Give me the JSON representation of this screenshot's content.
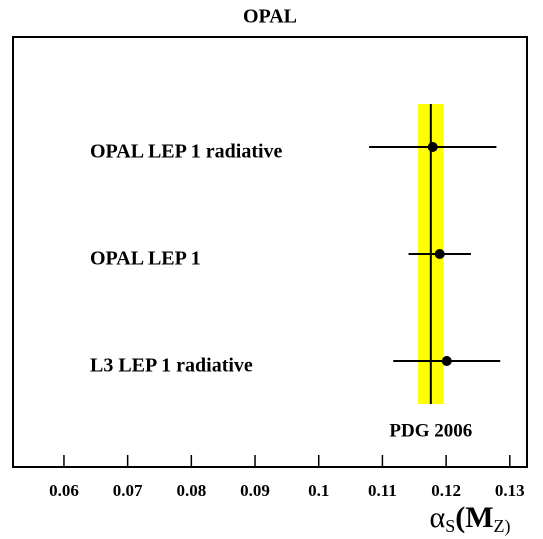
{
  "chart_data": {
    "type": "errorbar",
    "title": "OPAL",
    "xlabel": [
      "α",
      "S",
      "(M",
      "Z)"
    ],
    "categories": [
      "OPAL LEP 1 radiative",
      "OPAL LEP 1",
      "L3 LEP 1 radiative"
    ],
    "values": [
      0.1179,
      0.119,
      0.1201
    ],
    "errors": [
      0.01,
      0.0049,
      0.0084
    ],
    "color": "#000000",
    "reference": {
      "label": "PDG 2006",
      "value": 0.1176,
      "error": 0.002,
      "color": "#ffff00"
    },
    "xlim": [
      0.052,
      0.1327
    ],
    "xticks": [
      0.06,
      0.07,
      0.08,
      0.09,
      0.1,
      0.11,
      0.12,
      0.13
    ]
  }
}
